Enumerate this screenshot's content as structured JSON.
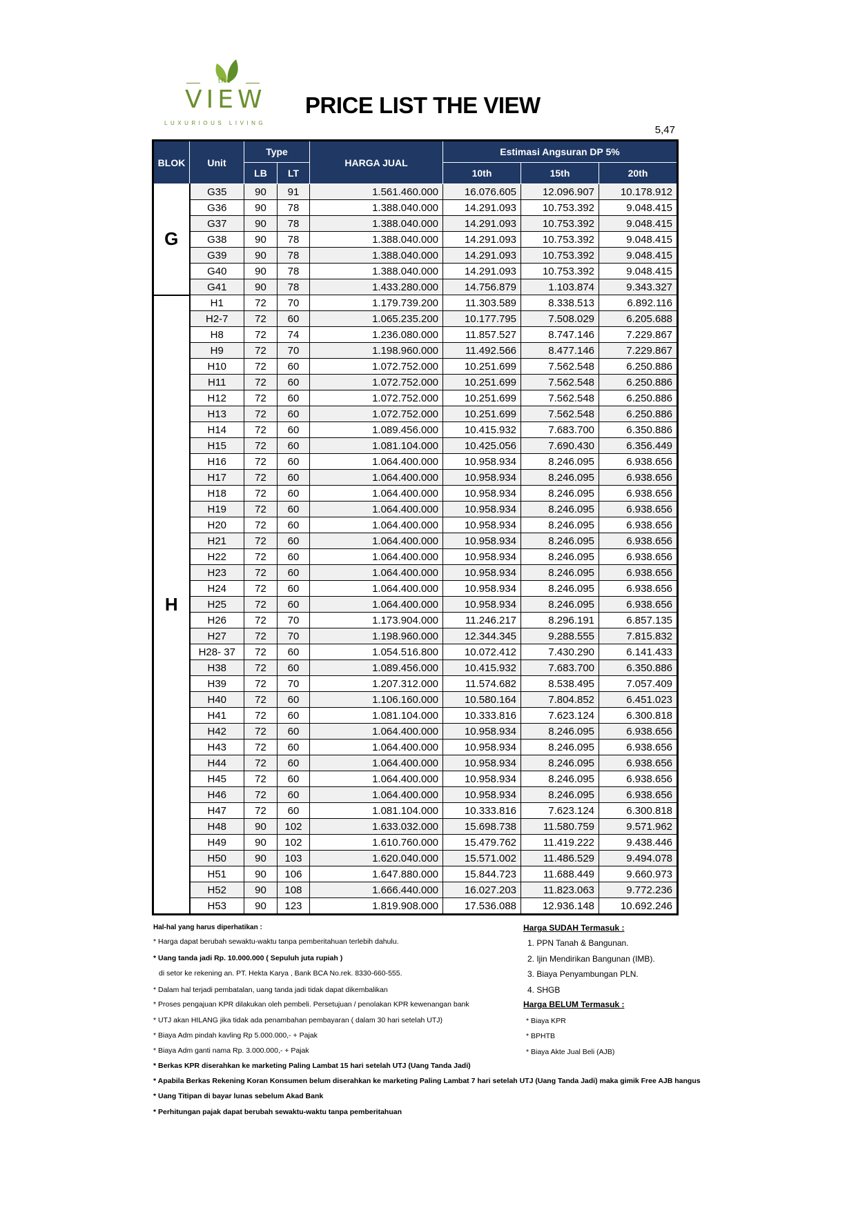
{
  "logo": {
    "brand_small": "the",
    "brand": "VIEW",
    "tagline": "LUXURIOUS LIVING"
  },
  "title": "PRICE LIST THE VIEW",
  "corner_value": "5,47",
  "table": {
    "headers": {
      "blok": "BLOK",
      "unit": "Unit",
      "type": "Type",
      "lb": "LB",
      "lt": "LT",
      "harga": "HARGA JUAL",
      "estimasi": "Estimasi Angsuran DP 5%",
      "t10": "10th",
      "t15": "15th",
      "t20": "20th"
    },
    "blocks": [
      {
        "name": "G",
        "rows": [
          [
            "G35",
            90,
            91,
            "1.561.460.000",
            "16.076.605",
            "12.096.907",
            "10.178.912"
          ],
          [
            "G36",
            90,
            78,
            "1.388.040.000",
            "14.291.093",
            "10.753.392",
            "9.048.415"
          ],
          [
            "G37",
            90,
            78,
            "1.388.040.000",
            "14.291.093",
            "10.753.392",
            "9.048.415"
          ],
          [
            "G38",
            90,
            78,
            "1.388.040.000",
            "14.291.093",
            "10.753.392",
            "9.048.415"
          ],
          [
            "G39",
            90,
            78,
            "1.388.040.000",
            "14.291.093",
            "10.753.392",
            "9.048.415"
          ],
          [
            "G40",
            90,
            78,
            "1.388.040.000",
            "14.291.093",
            "10.753.392",
            "9.048.415"
          ],
          [
            "G41",
            90,
            78,
            "1.433.280.000",
            "14.756.879",
            "1.103.874",
            "9.343.327"
          ]
        ]
      },
      {
        "name": "H",
        "rows": [
          [
            "H1",
            72,
            70,
            "1.179.739.200",
            "11.303.589",
            "8.338.513",
            "6.892.116"
          ],
          [
            "H2-7",
            72,
            60,
            "1.065.235.200",
            "10.177.795",
            "7.508.029",
            "6.205.688"
          ],
          [
            "H8",
            72,
            74,
            "1.236.080.000",
            "11.857.527",
            "8.747.146",
            "7.229.867"
          ],
          [
            "H9",
            72,
            70,
            "1.198.960.000",
            "11.492.566",
            "8.477.146",
            "7.229.867"
          ],
          [
            "H10",
            72,
            60,
            "1.072.752.000",
            "10.251.699",
            "7.562.548",
            "6.250.886"
          ],
          [
            "H11",
            72,
            60,
            "1.072.752.000",
            "10.251.699",
            "7.562.548",
            "6.250.886"
          ],
          [
            "H12",
            72,
            60,
            "1.072.752.000",
            "10.251.699",
            "7.562.548",
            "6.250.886"
          ],
          [
            "H13",
            72,
            60,
            "1.072.752.000",
            "10.251.699",
            "7.562.548",
            "6.250.886"
          ],
          [
            "H14",
            72,
            60,
            "1.089.456.000",
            "10.415.932",
            "7.683.700",
            "6.350.886"
          ],
          [
            "H15",
            72,
            60,
            "1.081.104.000",
            "10.425.056",
            "7.690.430",
            "6.356.449"
          ],
          [
            "H16",
            72,
            60,
            "1.064.400.000",
            "10.958.934",
            "8.246.095",
            "6.938.656"
          ],
          [
            "H17",
            72,
            60,
            "1.064.400.000",
            "10.958.934",
            "8.246.095",
            "6.938.656"
          ],
          [
            "H18",
            72,
            60,
            "1.064.400.000",
            "10.958.934",
            "8.246.095",
            "6.938.656"
          ],
          [
            "H19",
            72,
            60,
            "1.064.400.000",
            "10.958.934",
            "8.246.095",
            "6.938.656"
          ],
          [
            "H20",
            72,
            60,
            "1.064.400.000",
            "10.958.934",
            "8.246.095",
            "6.938.656"
          ],
          [
            "H21",
            72,
            60,
            "1.064.400.000",
            "10.958.934",
            "8.246.095",
            "6.938.656"
          ],
          [
            "H22",
            72,
            60,
            "1.064.400.000",
            "10.958.934",
            "8.246.095",
            "6.938.656"
          ],
          [
            "H23",
            72,
            60,
            "1.064.400.000",
            "10.958.934",
            "8.246.095",
            "6.938.656"
          ],
          [
            "H24",
            72,
            60,
            "1.064.400.000",
            "10.958.934",
            "8.246.095",
            "6.938.656"
          ],
          [
            "H25",
            72,
            60,
            "1.064.400.000",
            "10.958.934",
            "8.246.095",
            "6.938.656"
          ],
          [
            "H26",
            72,
            70,
            "1.173.904.000",
            "11.246.217",
            "8.296.191",
            "6.857.135"
          ],
          [
            "H27",
            72,
            70,
            "1.198.960.000",
            "12.344.345",
            "9.288.555",
            "7.815.832"
          ],
          [
            "H28- 37",
            72,
            60,
            "1.054.516.800",
            "10.072.412",
            "7.430.290",
            "6.141.433"
          ],
          [
            "H38",
            72,
            60,
            "1.089.456.000",
            "10.415.932",
            "7.683.700",
            "6.350.886"
          ],
          [
            "H39",
            72,
            70,
            "1.207.312.000",
            "11.574.682",
            "8.538.495",
            "7.057.409"
          ],
          [
            "H40",
            72,
            60,
            "1.106.160.000",
            "10.580.164",
            "7.804.852",
            "6.451.023"
          ],
          [
            "H41",
            72,
            60,
            "1.081.104.000",
            "10.333.816",
            "7.623.124",
            "6.300.818"
          ],
          [
            "H42",
            72,
            60,
            "1.064.400.000",
            "10.958.934",
            "8.246.095",
            "6.938.656"
          ],
          [
            "H43",
            72,
            60,
            "1.064.400.000",
            "10.958.934",
            "8.246.095",
            "6.938.656"
          ],
          [
            "H44",
            72,
            60,
            "1.064.400.000",
            "10.958.934",
            "8.246.095",
            "6.938.656"
          ],
          [
            "H45",
            72,
            60,
            "1.064.400.000",
            "10.958.934",
            "8.246.095",
            "6.938.656"
          ],
          [
            "H46",
            72,
            60,
            "1.064.400.000",
            "10.958.934",
            "8.246.095",
            "6.938.656"
          ],
          [
            "H47",
            72,
            60,
            "1.081.104.000",
            "10.333.816",
            "7.623.124",
            "6.300.818"
          ],
          [
            "H48",
            90,
            102,
            "1.633.032.000",
            "15.698.738",
            "11.580.759",
            "9.571.962"
          ],
          [
            "H49",
            90,
            102,
            "1.610.760.000",
            "15.479.762",
            "11.419.222",
            "9.438.446"
          ],
          [
            "H50",
            90,
            103,
            "1.620.040.000",
            "15.571.002",
            "11.486.529",
            "9.494.078"
          ],
          [
            "H51",
            90,
            106,
            "1.647.880.000",
            "15.844.723",
            "11.688.449",
            "9.660.973"
          ],
          [
            "H52",
            90,
            108,
            "1.666.440.000",
            "16.027.203",
            "11.823.063",
            "9.772.236"
          ],
          [
            "H53",
            90,
            123,
            "1.819.908.000",
            "17.536.088",
            "12.936.148",
            "10.692.246"
          ]
        ]
      }
    ]
  },
  "notes": {
    "title": "Hal-hal yang harus diperhatikan :",
    "items": [
      "* Harga dapat berubah sewaktu-waktu tanpa pemberitahuan terlebih dahulu.",
      "* Uang tanda jadi Rp. 10.000.000 ( Sepuluh juta rupiah )",
      "di setor ke rekening an. PT. Hekta Karya , Bank BCA No.rek. 8330-660-555.",
      "* Dalam hal terjadi pembatalan, uang tanda jadi tidak dapat dikembalikan",
      "* Proses  pengajuan KPR dilakukan oleh pembeli. Persetujuan / penolakan KPR kewenangan bank",
      "* UTJ akan HILANG jika tidak ada penambahan pembayaran ( dalam 30 hari setelah UTJ)",
      "* Biaya Adm pindah kavling Rp 5.000.000,- + Pajak",
      "* Biaya Adm ganti  nama    Rp. 3.000.000,- + Pajak",
      "* Berkas KPR diserahkan ke marketing Paling Lambat 15 hari setelah UTJ (Uang Tanda Jadi)",
      "* Apabila Berkas Rekening Koran Konsumen belum diserahkan ke marketing Paling Lambat 7 hari setelah UTJ (Uang Tanda Jadi) maka gimik Free AJB hangus",
      "* Uang Titipan di bayar lunas sebelum Akad Bank",
      "* Perhitungan pajak dapat berubah sewaktu-waktu tanpa pemberitahuan"
    ],
    "included_title": "Harga SUDAH Termasuk :",
    "included": [
      "1. PPN Tanah & Bangunan.",
      "2. Ijin Mendirikan Bangunan (IMB).",
      "3. Biaya Penyambungan PLN.",
      "4. SHGB"
    ],
    "excluded_title": "Harga BELUM Termasuk :",
    "excluded": [
      "* Biaya KPR",
      "* BPHTB",
      "* Biaya Akte Jual Beli (AJB)"
    ]
  }
}
